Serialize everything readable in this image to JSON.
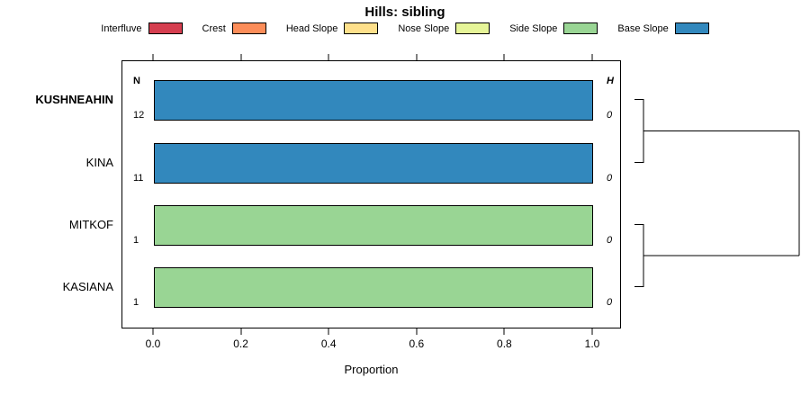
{
  "title": "Hills: sibling",
  "legend": [
    {
      "label": "Interfluve",
      "color": "#D53E4F"
    },
    {
      "label": "Crest",
      "color": "#FC8D59"
    },
    {
      "label": "Head Slope",
      "color": "#FEE08B"
    },
    {
      "label": "Nose Slope",
      "color": "#E6F598"
    },
    {
      "label": "Side Slope",
      "color": "#99D594"
    },
    {
      "label": "Base Slope",
      "color": "#3288BD"
    }
  ],
  "chart_data": {
    "type": "bar",
    "orientation": "horizontal",
    "title": "Hills: sibling",
    "xlabel": "Proportion",
    "xlim": [
      0,
      1
    ],
    "x_ticks": [
      "0.0",
      "0.2",
      "0.4",
      "0.6",
      "0.8",
      "1.0"
    ],
    "col_headers": {
      "n": "N",
      "h": "H"
    },
    "rows": [
      {
        "label": "KUSHNEAHIN",
        "n": "12",
        "h": "0",
        "value": 1.0,
        "category": "Base Slope",
        "color": "#3288BD"
      },
      {
        "label": "KINA",
        "n": "11",
        "h": "0",
        "value": 1.0,
        "category": "Base Slope",
        "color": "#3288BD"
      },
      {
        "label": "MITKOF",
        "n": "1",
        "h": "0",
        "value": 1.0,
        "category": "Side Slope",
        "color": "#99D594"
      },
      {
        "label": "KASIANA",
        "n": "1",
        "h": "0",
        "value": 1.0,
        "category": "Side Slope",
        "color": "#99D594"
      }
    ],
    "dendrogram": {
      "clusters": [
        [
          "KUSHNEAHIN",
          "KINA"
        ],
        [
          "MITKOF",
          "KASIANA"
        ]
      ],
      "root": "joins both clusters"
    }
  }
}
